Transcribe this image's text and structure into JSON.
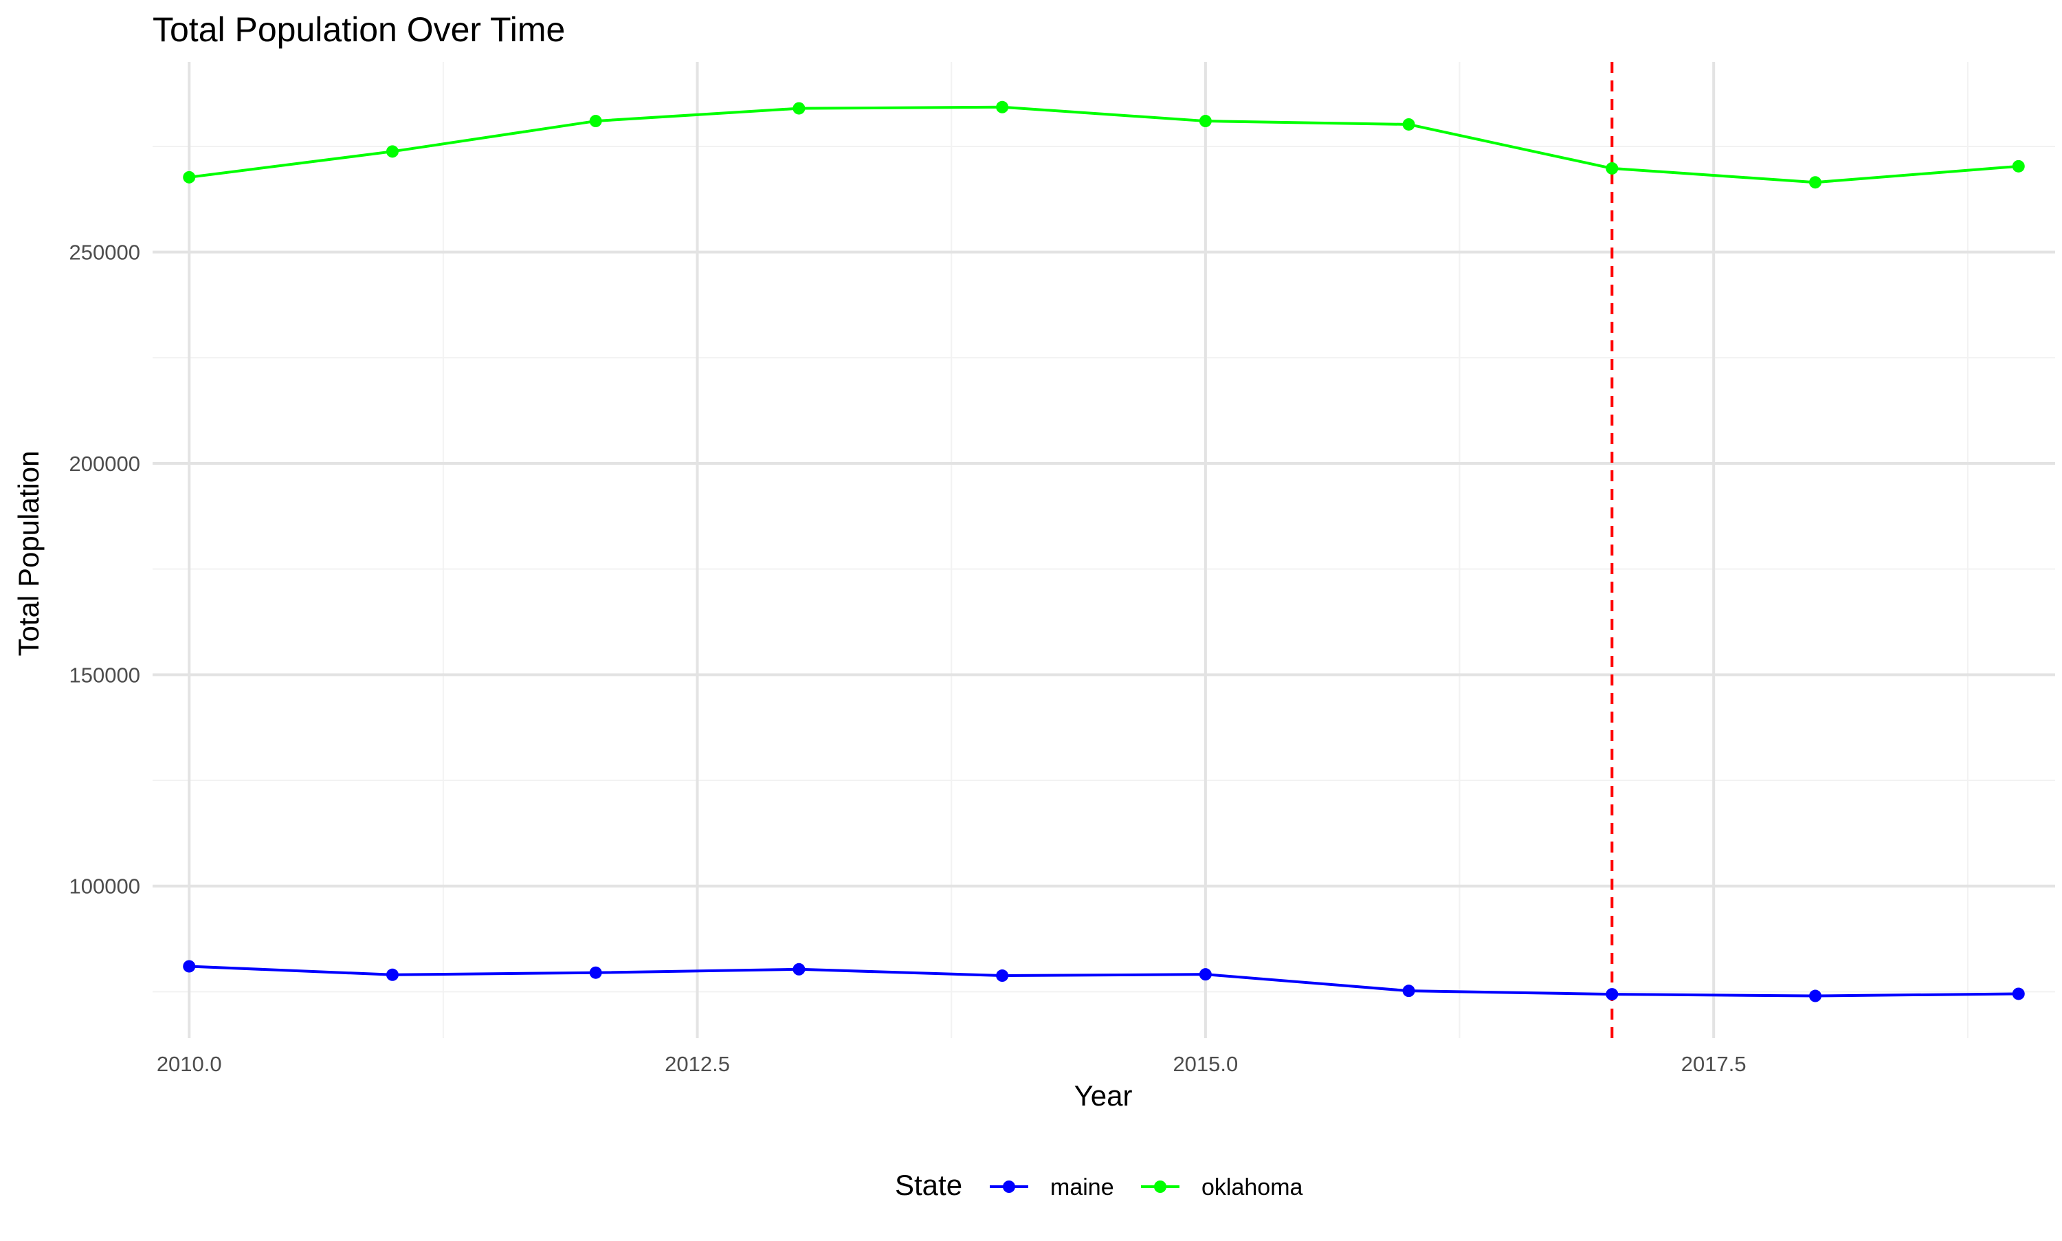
{
  "chart_data": {
    "type": "line",
    "title": "Total Population Over Time",
    "xlabel": "Year",
    "ylabel": "Total Population",
    "xlim": [
      2009.82,
      2019.18
    ],
    "ylim": [
      64000,
      295000
    ],
    "x_ticks": [
      2010.0,
      2012.5,
      2015.0,
      2017.5
    ],
    "x_tick_labels": [
      "2010.0",
      "2012.5",
      "2015.0",
      "2017.5"
    ],
    "x_minor_ticks": [
      2011.25,
      2013.75,
      2016.25,
      2018.75
    ],
    "y_ticks": [
      100000,
      150000,
      200000,
      250000
    ],
    "y_tick_labels": [
      "100000",
      "150000",
      "200000",
      "250000"
    ],
    "y_minor_ticks": [
      75000,
      125000,
      175000,
      225000,
      275000
    ],
    "grid": true,
    "legend": {
      "title": "State",
      "position": "bottom"
    },
    "x": [
      2010,
      2011,
      2012,
      2013,
      2014,
      2015,
      2016,
      2017,
      2018,
      2019
    ],
    "series": [
      {
        "name": "maine",
        "color": "#0000ff",
        "values": [
          81000,
          79000,
          79500,
          80300,
          78800,
          79100,
          75200,
          74400,
          74000,
          74500
        ]
      },
      {
        "name": "oklahoma",
        "color": "#00ff00",
        "values": [
          267700,
          273800,
          281000,
          284000,
          284300,
          281000,
          280200,
          269800,
          266500,
          270300
        ]
      }
    ],
    "annotations": [
      {
        "type": "vline",
        "x": 2017,
        "color": "#ff0000",
        "style": "dashed"
      }
    ]
  }
}
